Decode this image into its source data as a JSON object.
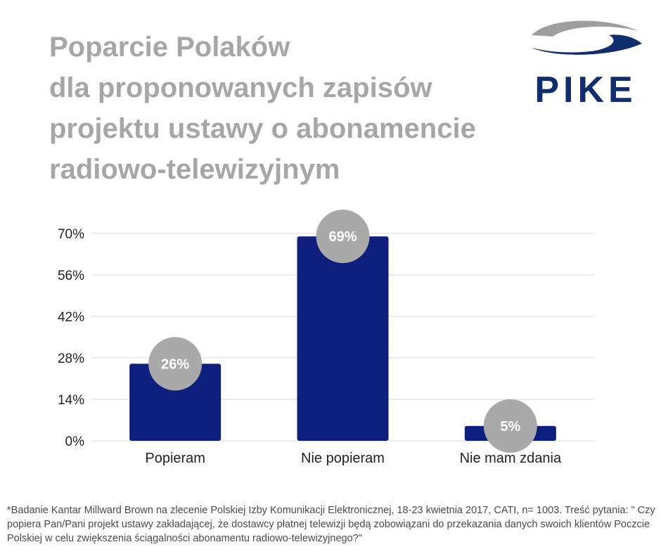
{
  "title_lines": [
    "Poparcie Polaków",
    "dla proponowanych zapisów",
    "projektu ustawy o abonamencie",
    "radiowo-telewizyjnym"
  ],
  "logo": {
    "text": "PIKE",
    "colors": {
      "swoosh_top": "#9e9e9e",
      "swoosh_bottom": "#102d6e"
    }
  },
  "colors": {
    "bar": "#0e1f7d",
    "bubble": "#a9a9a9",
    "grid": "#d9d9d9",
    "axis_text": "#222222",
    "title": "#a6a6a6"
  },
  "chart_data": {
    "type": "bar",
    "title": "Poparcie Polaków dla proponowanych zapisów projektu ustawy o abonamencie radiowo-telewizyjnym",
    "categories": [
      "Popieram",
      "Nie popieram",
      "Nie mam zdania"
    ],
    "values": [
      26,
      69,
      5
    ],
    "data_labels": [
      "26%",
      "69%",
      "5%"
    ],
    "yticks": [
      "0%",
      "14%",
      "28%",
      "42%",
      "56%",
      "70%"
    ],
    "ytick_values": [
      0,
      14,
      28,
      42,
      56,
      70
    ],
    "ylim": [
      0,
      70
    ],
    "xlabel": "",
    "ylabel": "",
    "grid": true,
    "legend": "none"
  },
  "footnote": "*Badanie Kantar Millward Brown na zlecenie Polskiej Izby Komunikacji Elektronicznej, 18-23 kwietnia 2017, CATI, n= 1003. Treść pytania: \" Czy popiera Pan/Pani projekt ustawy zakładającej, że dostawcy płatnej telewizji będą zobowiązani do przekazania danych swoich klientów Poczcie Polskiej w celu zwiększenia ściągalności abonamentu radiowo-telewizyjnego?\""
}
